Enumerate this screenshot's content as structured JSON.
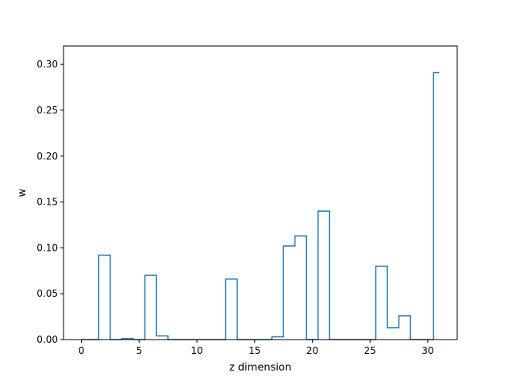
{
  "chart_data": {
    "type": "step",
    "title": "",
    "xlabel": "z dimension",
    "ylabel": "w",
    "x": [
      0,
      1,
      2,
      3,
      4,
      5,
      6,
      7,
      8,
      9,
      10,
      11,
      12,
      13,
      14,
      15,
      16,
      17,
      18,
      19,
      20,
      21,
      22,
      23,
      24,
      25,
      26,
      27,
      28,
      29,
      30,
      31
    ],
    "values": [
      0.0,
      0.0,
      0.092,
      0.0,
      0.001,
      0.0,
      0.07,
      0.004,
      0.0,
      0.0,
      0.0,
      0.0,
      0.0,
      0.066,
      0.0,
      0.0,
      0.0,
      0.003,
      0.102,
      0.113,
      0.0,
      0.14,
      0.0,
      0.0,
      0.0,
      0.0,
      0.08,
      0.013,
      0.026,
      0.0,
      0.0,
      0.291
    ],
    "step_where": "mid",
    "xlim": [
      -1.55,
      32.55
    ],
    "ylim": [
      0,
      0.32
    ],
    "xticks": [
      0,
      5,
      10,
      15,
      20,
      25,
      30
    ],
    "xtick_labels": [
      "0",
      "5",
      "10",
      "15",
      "20",
      "25",
      "30"
    ],
    "yticks": [
      0.0,
      0.05,
      0.1,
      0.15,
      0.2,
      0.25,
      0.3
    ],
    "ytick_labels": [
      "0.00",
      "0.05",
      "0.10",
      "0.15",
      "0.20",
      "0.25",
      "0.30"
    ],
    "grid": false,
    "legend": "none",
    "line_color": "#1f77b4"
  }
}
